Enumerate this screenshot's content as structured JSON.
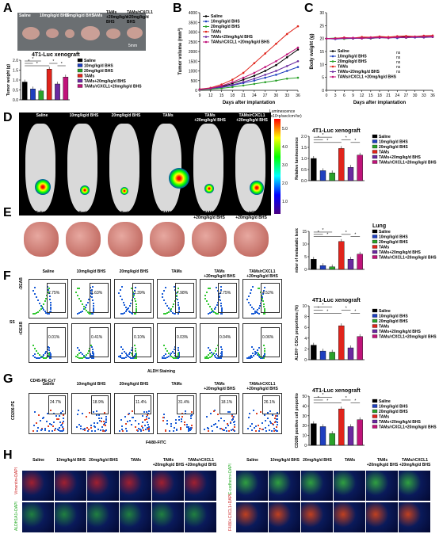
{
  "panels": {
    "A": "A",
    "B": "B",
    "C": "C",
    "D": "D",
    "E": "E",
    "F": "F",
    "G": "G",
    "H": "H"
  },
  "groups": [
    "Saline",
    "10mg/kg/d BHS",
    "20mg/kg/d BHS",
    "TAMs",
    "TAMs+20mg/kg/d BHS",
    "TAMs/rCXCL1+20mg/kg/d BHS"
  ],
  "groups_short": [
    "Saline",
    "10mg/kg/d BHS",
    "20mg/kg/d BHS",
    "TAMs",
    "TAMs\n+20mg/kg/d BHS",
    "TAMs/rCXCL1\n+20mg/kg/d BHS"
  ],
  "colors": [
    "#000000",
    "#1f3fbf",
    "#2aa12a",
    "#e0241b",
    "#6a2aa0",
    "#c0137a"
  ],
  "A": {
    "tumor_labels": [
      "Saline",
      "10mg/kg/d BHS",
      "20mg/kg/d BHS",
      "TAMs",
      "TAMs +20mg/kg/d BHS",
      "TAMs/rCXCL1 +20mg/kg/d BHS"
    ],
    "scale": "5mm",
    "title": "4T1-Luc  xenograft",
    "ylabel": "Tumor weight (g)"
  },
  "B": {
    "ylabel": "Tumor volume (mm³)",
    "xlabel": "Days after implantation",
    "legend": [
      "Saline",
      "10mg/kg/d BHS",
      "20mg/kg/d BHS",
      "TAMs",
      "TAMs+20mg/kg/d BHS",
      "TAMs/rCXCL1 +20mg/kg/d BHS"
    ]
  },
  "C": {
    "ylabel": "Body weight (g)",
    "xlabel": "Days after implantation",
    "legend": [
      "Saline",
      "10mg/kg/d BHS",
      "20mg/kg/d BHS",
      "TAMs",
      "TAMs+20mg/kg/d BHS",
      "TAMs/rCXCL1 +20mg/kg/d BHS"
    ],
    "ns": "ns"
  },
  "D": {
    "labels": [
      "Saline",
      "10mg/kg/d BHS",
      "20mg/kg/d BHS",
      "TAMs",
      "TAMs\n+20mg/kg/d BHS",
      "TAMs/rCXCL1\n+20mg/kg/d BHS"
    ],
    "scale_title": "Luminescence (x10⁶p/sec/cm²/sr)",
    "scale_ticks": [
      "5.0",
      "4.0",
      "3.0",
      "2.0",
      "1.0"
    ],
    "title": "4T1-Luc  xenograft",
    "ylabel": "Relative luminescence"
  },
  "E": {
    "labels": [
      "Saline",
      "10mg/kg/d BHS",
      "20mg/kg/d BHS",
      "TAMs",
      "TAMs\n+20mg/kg/d BHS",
      "TAMs/rCXCL1\n+20mg/kg/d BHS"
    ],
    "title": "Lung",
    "ylabel": "Number of metastatic lesions"
  },
  "F": {
    "labels": [
      "Saline",
      "10mg/kg/d BHS",
      "20mg/kg/d BHS",
      "TAMs",
      "TAMs\n+20mg/kg/d BHS",
      "TAMs/rCXCL1\n+20mg/kg/d BHS"
    ],
    "top_pct": [
      "2.75%",
      "1.63%",
      "1.39%",
      "7.98%",
      "2.75%",
      "4.52%"
    ],
    "bot_pct": [
      "0.01%",
      "0.41%",
      "0.10%",
      "0.03%",
      "0.04%",
      "0.06%"
    ],
    "row_labels": [
      "-DEAB",
      "+DEAB"
    ],
    "yaxis": "SS",
    "xaxis": "ALDH Staining",
    "title": "4T1-Luc  xenograft",
    "ylabel": "ALDH⁺ CSCs proportions (%)"
  },
  "G": {
    "labels": [
      "Saline",
      "10mg/kg/d BHS",
      "20mg/kg/d BHS",
      "TAMs",
      "TAMs\n+20mg/kg/d BHS",
      "TAMs/rCXCL1\n+20mg/kg/d BHS"
    ],
    "pct": [
      "24.7%",
      "18.9%",
      "11.4%",
      "31.4%",
      "18.1%",
      "26.1%"
    ],
    "ylabel_flow": "CD206-PE",
    "xlabel_flow": "F4/80-FITC",
    "gate_label": "CD45-PE-Cy7",
    "title": "4T1-Luc  xenograft",
    "ylabel": "F4/80⁺CD206 positive cell proportions (%)"
  },
  "H": {
    "labels": [
      "Saline",
      "10mg/kg/d BHS",
      "20mg/kg/d BHS",
      "TAMs",
      "TAMs/rCXCL1\n+20mg/kg/d BHS",
      "+20mg/kg/d BHS"
    ],
    "left_rows": [
      "Vimentin+DAPI",
      "ALDH1A1+DAPI"
    ],
    "right_rows": [
      "E-cadherin+DAPI",
      "F4/80+CXCL1+DAPI"
    ],
    "right_labels": [
      "Saline",
      "10mg/kg/d BHS",
      "20mg/kg/d BHS",
      "TAMs",
      "TAMs\n+20mg/kg/d BHS",
      "TAMs/rCXCL1\n+20mg/kg/d BHS"
    ]
  },
  "chart_data": [
    {
      "type": "bar",
      "id": "A_weight",
      "categories": [
        "Saline",
        "10mg/kg/d BHS",
        "20mg/kg/d BHS",
        "TAMs",
        "TAMs+20mg/kg/d BHS",
        "TAMs/rCXCL1+20mg/kg/d BHS"
      ],
      "values": [
        0.9,
        0.55,
        0.45,
        1.55,
        0.8,
        1.15
      ],
      "ylim": [
        0,
        2.0
      ],
      "yticks": [
        "0.0",
        "0.5",
        "1.0",
        "1.5",
        "2.0"
      ]
    },
    {
      "type": "line",
      "id": "B_volume",
      "x": [
        9,
        12,
        15,
        18,
        21,
        24,
        27,
        30,
        33,
        36
      ],
      "ylim": [
        0,
        4000
      ],
      "yticks": [
        "0",
        "500",
        "1000",
        "1500",
        "2000",
        "2500",
        "3000",
        "3500",
        "4000"
      ],
      "series": [
        {
          "name": "Saline",
          "values": [
            50,
            100,
            200,
            350,
            550,
            750,
            1000,
            1300,
            1700,
            2100
          ]
        },
        {
          "name": "10mg/kg/d BHS",
          "values": [
            40,
            80,
            150,
            250,
            380,
            500,
            650,
            800,
            1000,
            1200
          ]
        },
        {
          "name": "20mg/kg/d BHS",
          "values": [
            35,
            60,
            100,
            170,
            250,
            330,
            420,
            500,
            600,
            650
          ]
        },
        {
          "name": "TAMs",
          "values": [
            60,
            130,
            300,
            550,
            900,
            1400,
            1900,
            2400,
            2900,
            3300
          ]
        },
        {
          "name": "TAMs+20mg/kg/d BHS",
          "values": [
            45,
            90,
            170,
            280,
            430,
            600,
            800,
            1000,
            1250,
            1500
          ]
        },
        {
          "name": "TAMs/rCXCL1 +20mg/kg/d BHS",
          "values": [
            50,
            110,
            230,
            420,
            650,
            900,
            1200,
            1500,
            1850,
            2200
          ]
        }
      ]
    },
    {
      "type": "line",
      "id": "C_body",
      "x": [
        0,
        3,
        6,
        9,
        12,
        15,
        18,
        21,
        24,
        27,
        30,
        33,
        36
      ],
      "ylim": [
        0,
        30
      ],
      "yticks": [
        "0",
        "5",
        "10",
        "15",
        "20",
        "25",
        "30"
      ],
      "series": [
        {
          "name": "Saline",
          "values": [
            20,
            20,
            20.3,
            20,
            20.5,
            20.2,
            20.6,
            20.4,
            20.5,
            20.8,
            20.6,
            20.7,
            20.9
          ]
        },
        {
          "name": "10mg/kg/d BHS",
          "values": [
            20,
            19.8,
            20,
            20.2,
            20,
            20.4,
            20.3,
            20.5,
            20.2,
            20.6,
            20.4,
            20.6,
            20.7
          ]
        },
        {
          "name": "20mg/kg/d BHS",
          "values": [
            20,
            20.2,
            19.9,
            20.1,
            20.3,
            20,
            20.4,
            20.2,
            20.6,
            20.3,
            20.7,
            20.5,
            20.6
          ]
        },
        {
          "name": "TAMs",
          "values": [
            20,
            20.1,
            20.4,
            20.2,
            20.6,
            20.5,
            20.8,
            20.6,
            20.9,
            21,
            20.8,
            21.1,
            21.2
          ]
        },
        {
          "name": "TAMs+20mg/kg/d BHS",
          "values": [
            20,
            19.9,
            20.1,
            20,
            20.2,
            20.1,
            20.3,
            20.2,
            20.4,
            20.3,
            20.5,
            20.4,
            20.6
          ]
        },
        {
          "name": "TAMs/rCXCL1 +20mg/kg/d BHS",
          "values": [
            20,
            20,
            20.2,
            20.3,
            20.1,
            20.4,
            20.5,
            20.3,
            20.6,
            20.5,
            20.7,
            20.8,
            20.8
          ]
        }
      ]
    },
    {
      "type": "bar",
      "id": "D_lum",
      "categories": [
        "Saline",
        "10mg/kg/d BHS",
        "20mg/kg/d BHS",
        "TAMs",
        "TAMs+20mg/kg/d BHS",
        "TAMs/rCXCL1+20mg/kg/d BHS"
      ],
      "values": [
        1.0,
        0.45,
        0.35,
        1.45,
        0.6,
        1.15
      ],
      "ylim": [
        0,
        2.0
      ],
      "yticks": [
        "0.0",
        "0.5",
        "1.0",
        "1.5",
        "2.0"
      ]
    },
    {
      "type": "bar",
      "id": "E_lung",
      "categories": [
        "Saline",
        "10mg/kg/d BHS",
        "20mg/kg/d BHS",
        "TAMs",
        "TAMs+20mg/kg/d BHS",
        "TAMs/rCXCL1+20mg/kg/d BHS"
      ],
      "values": [
        4,
        1.5,
        1,
        11,
        4,
        6
      ],
      "ylim": [
        0,
        15
      ],
      "yticks": [
        "0",
        "5",
        "10",
        "15"
      ]
    },
    {
      "type": "bar",
      "id": "F_aldh",
      "categories": [
        "Saline",
        "10mg/kg/d BHS",
        "20mg/kg/d BHS",
        "TAMs",
        "TAMs+20mg/kg/d BHS",
        "TAMs/rCXCL1+20mg/kg/d BHS"
      ],
      "values": [
        2.7,
        1.6,
        1.4,
        6.3,
        2.2,
        4.3
      ],
      "ylim": [
        0,
        10
      ],
      "yticks": [
        "0",
        "2",
        "4",
        "6",
        "8",
        "10"
      ]
    },
    {
      "type": "bar",
      "id": "G_cd206",
      "categories": [
        "Saline",
        "10mg/kg/d BHS",
        "20mg/kg/d BHS",
        "TAMs",
        "TAMs+20mg/kg/d BHS",
        "TAMs/rCXCL1+20mg/kg/d BHS"
      ],
      "values": [
        22,
        19,
        12,
        37,
        19,
        26
      ],
      "ylim": [
        0,
        50
      ],
      "yticks": [
        "0",
        "10",
        "20",
        "30",
        "40",
        "50"
      ]
    }
  ]
}
